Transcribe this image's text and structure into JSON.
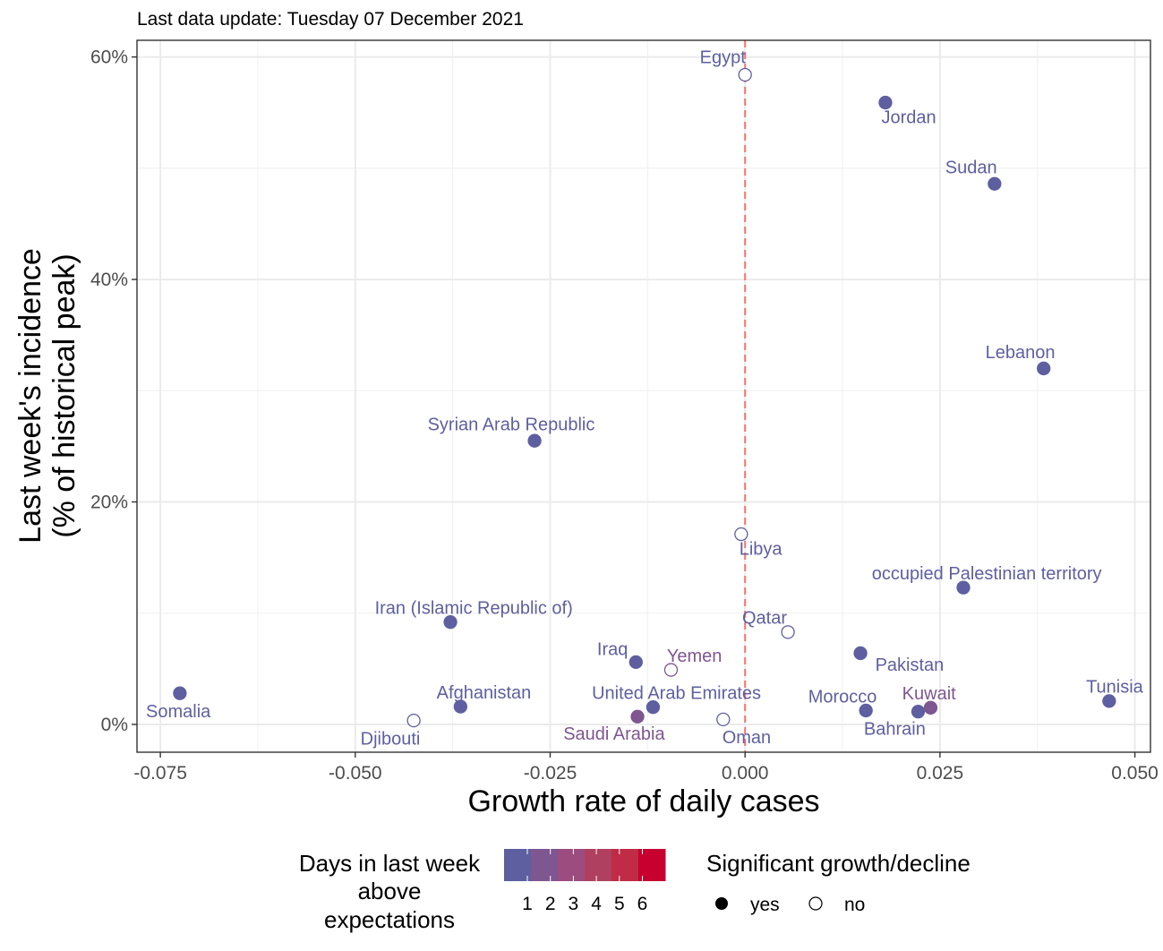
{
  "chart_data": {
    "type": "scatter",
    "subtitle": "Last data update: Tuesday 07 December 2021",
    "xlabel": "Growth rate of daily cases",
    "ylabel_lines": [
      "Last week's incidence",
      "(% of historical peak)"
    ],
    "xlim": [
      -0.078,
      0.052
    ],
    "ylim": [
      -2.5,
      61.5
    ],
    "x_ticks": [
      {
        "value": -0.075,
        "label": "-0.075"
      },
      {
        "value": -0.05,
        "label": "-0.050"
      },
      {
        "value": -0.025,
        "label": "-0.025"
      },
      {
        "value": 0,
        "label": "0.000"
      },
      {
        "value": 0.025,
        "label": "0.025"
      },
      {
        "value": 0.05,
        "label": "0.050"
      }
    ],
    "x_minor_ticks": [
      -0.0625,
      -0.0375,
      -0.0125,
      0.0125,
      0.0375
    ],
    "y_ticks": [
      {
        "value": 0,
        "label": "0%"
      },
      {
        "value": 20,
        "label": "20%"
      },
      {
        "value": 40,
        "label": "40%"
      },
      {
        "value": 60,
        "label": "60%"
      }
    ],
    "y_minor_ticks": [
      10,
      30,
      50
    ],
    "grid": true,
    "reference_line": {
      "x": 0,
      "color": "#f8766d",
      "style": "dashed"
    },
    "points": [
      {
        "name": "Egypt",
        "x": 0.0,
        "y": 58.4,
        "days": 1,
        "significant": false,
        "label_dx": -3,
        "label_dy": 1.6
      },
      {
        "name": "Jordan",
        "x": 0.018,
        "y": 55.9,
        "days": 1,
        "significant": true,
        "label_dx": 0.003,
        "label_dy": -1.3
      },
      {
        "name": "Sudan",
        "x": 0.032,
        "y": 48.6,
        "days": 1,
        "significant": true,
        "label_dx": -0.003,
        "label_dy": 1.5
      },
      {
        "name": "Lebanon",
        "x": 0.0383,
        "y": 32.0,
        "days": 1,
        "significant": true,
        "label_dx": -0.003,
        "label_dy": 1.5
      },
      {
        "name": "Syrian Arab Republic",
        "x": -0.027,
        "y": 25.5,
        "days": 1,
        "significant": true,
        "label_dx": -0.003,
        "label_dy": 1.5
      },
      {
        "name": "Libya",
        "x": -0.0005,
        "y": 17.1,
        "days": 1,
        "significant": false,
        "label_dx": 0.0025,
        "label_dy": -1.3
      },
      {
        "name": "occupied Palestinian territory",
        "x": 0.028,
        "y": 12.3,
        "days": 1,
        "significant": true,
        "label_dx": 0.003,
        "label_dy": 1.3
      },
      {
        "name": "Iran (Islamic Republic of)",
        "x": -0.0378,
        "y": 9.2,
        "days": 1,
        "significant": true,
        "label_dx": 0.003,
        "label_dy": 1.3
      },
      {
        "name": "Qatar",
        "x": 0.0055,
        "y": 8.3,
        "days": 1,
        "significant": false,
        "label_dx": -0.003,
        "label_dy": 1.3
      },
      {
        "name": "Pakistan",
        "x": 0.0148,
        "y": 6.4,
        "days": 1,
        "significant": true,
        "label_dx": 0.0063,
        "label_dy": -1.0
      },
      {
        "name": "Iraq",
        "x": -0.014,
        "y": 5.6,
        "days": 1,
        "significant": true,
        "label_dx": -0.003,
        "label_dy": 1.2
      },
      {
        "name": "Yemen",
        "x": -0.0095,
        "y": 4.9,
        "days": 2,
        "significant": false,
        "label_dx": 0.003,
        "label_dy": 1.3
      },
      {
        "name": "Somalia",
        "x": -0.0725,
        "y": 2.8,
        "days": 1,
        "significant": true,
        "label_dx": -0.0002,
        "label_dy": -1.6
      },
      {
        "name": "Tunisia",
        "x": 0.0467,
        "y": 2.1,
        "days": 1,
        "significant": true,
        "label_dx": 0.0007,
        "label_dy": 1.3
      },
      {
        "name": "Afghanistan",
        "x": -0.0365,
        "y": 1.6,
        "days": 1,
        "significant": true,
        "label_dx": 0.003,
        "label_dy": 1.3
      },
      {
        "name": "United Arab Emirates",
        "x": -0.0118,
        "y": 1.55,
        "days": 1,
        "significant": true,
        "label_dx": 0.003,
        "label_dy": 1.3
      },
      {
        "name": "Kuwait",
        "x": 0.0238,
        "y": 1.5,
        "days": 2,
        "significant": true,
        "label_dx": -0.0002,
        "label_dy": 1.3
      },
      {
        "name": "Morocco",
        "x": 0.0155,
        "y": 1.25,
        "days": 1,
        "significant": true,
        "label_dx": -0.003,
        "label_dy": 1.3
      },
      {
        "name": "Bahrain",
        "x": 0.0222,
        "y": 1.15,
        "days": 1,
        "significant": true,
        "label_dx": -0.003,
        "label_dy": -1.5
      },
      {
        "name": "Saudi Arabia",
        "x": -0.0138,
        "y": 0.7,
        "days": 2,
        "significant": true,
        "label_dx": -0.003,
        "label_dy": -1.5
      },
      {
        "name": "Oman",
        "x": -0.0028,
        "y": 0.45,
        "days": 1,
        "significant": false,
        "label_dx": 0.003,
        "label_dy": -1.6
      },
      {
        "name": "Djibouti",
        "x": -0.0425,
        "y": 0.35,
        "days": 1,
        "significant": false,
        "label_dx": -0.003,
        "label_dy": -1.6
      }
    ],
    "color_legend": {
      "title_lines": [
        "Days in last week",
        "above",
        "expectations"
      ],
      "labels": [
        "1",
        "2",
        "3",
        "4",
        "5",
        "6"
      ],
      "colors": [
        "#5e5fa0",
        "#7e5690",
        "#9c4c7e",
        "#b0405f",
        "#c02b45",
        "#c7002f"
      ]
    },
    "shape_legend": {
      "title": "Significant growth/decline",
      "items": [
        {
          "label": "yes",
          "filled": true
        },
        {
          "label": "no",
          "filled": false
        }
      ]
    }
  }
}
